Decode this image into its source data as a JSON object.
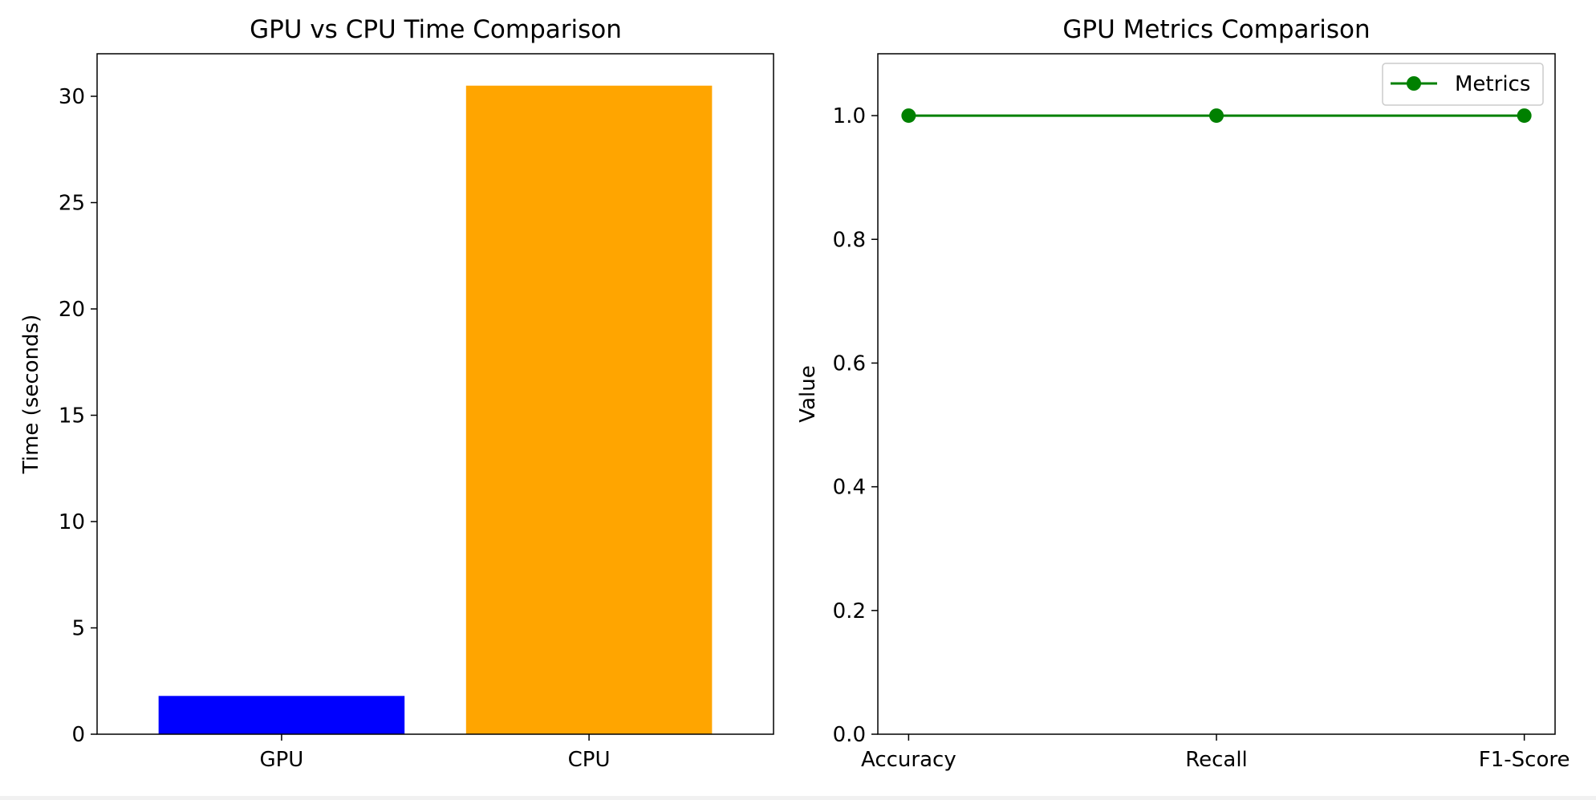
{
  "chart_data": [
    {
      "type": "bar",
      "title": "GPU vs CPU Time Comparison",
      "xlabel": "",
      "ylabel": "Time (seconds)",
      "categories": [
        "GPU",
        "CPU"
      ],
      "values": [
        1.8,
        30.5
      ],
      "colors": [
        "#0000ff",
        "#ffa500"
      ],
      "ylim": [
        0,
        32
      ],
      "yticks": [
        0,
        5,
        10,
        15,
        20,
        25,
        30
      ],
      "grid": false
    },
    {
      "type": "line",
      "title": "GPU Metrics Comparison",
      "xlabel": "",
      "ylabel": "Value",
      "categories": [
        "Accuracy",
        "Recall",
        "F1-Score"
      ],
      "series": [
        {
          "name": "Metrics",
          "values": [
            1.0,
            1.0,
            1.0
          ],
          "color": "#008000",
          "marker": "circle"
        }
      ],
      "ylim": [
        0,
        1.1
      ],
      "yticks": [
        "0.0",
        "0.2",
        "0.4",
        "0.6",
        "0.8",
        "1.0"
      ],
      "legend": "top-right",
      "grid": false
    }
  ]
}
